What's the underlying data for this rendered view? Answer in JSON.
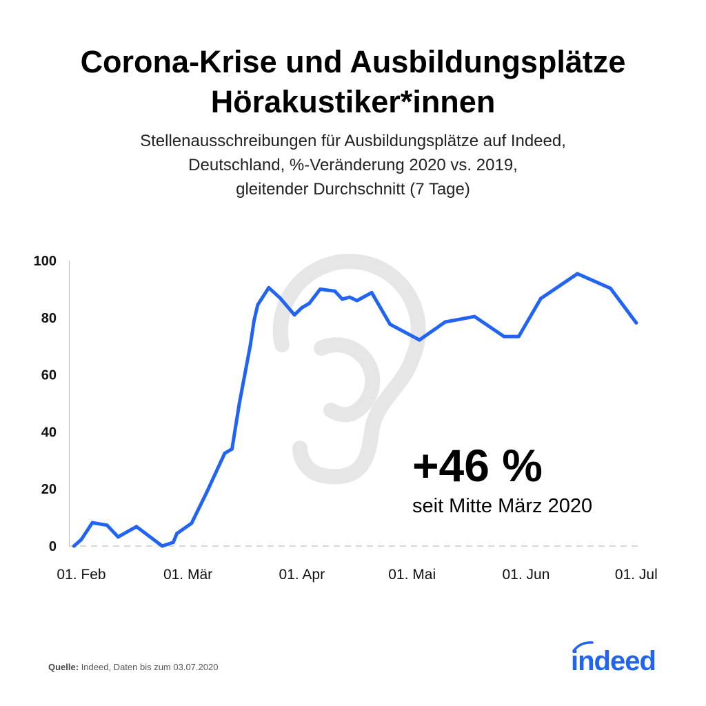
{
  "title_line1": "Corona-Krise und Ausbildungsplätze",
  "title_line2": "Hörakustiker*innen",
  "subtitle_line1": "Stellenausschreibungen für Ausbildungsplätze auf Indeed,",
  "subtitle_line2": "Deutschland, %-Veränderung 2020 vs. 2019,",
  "subtitle_line3": "gleitender Durchschnitt (7 Tage)",
  "highlight": {
    "value": "+46 %",
    "caption": "seit Mitte März 2020"
  },
  "source": {
    "label": "Quelle:",
    "text": " Indeed, Daten bis zum 03.07.2020"
  },
  "logo": "indeed",
  "colors": {
    "line": "#2164f3",
    "brand": "#2164f3",
    "watermark": "#e6e6e6"
  },
  "watermark_icon": "ear-icon",
  "chart_data": {
    "type": "line",
    "xlabel": "",
    "ylabel": "",
    "ylim": [
      0,
      100
    ],
    "yticks": [
      "0",
      "20",
      "40",
      "60",
      "80",
      "100"
    ],
    "xticks": [
      {
        "date": "2020-02-01",
        "label": "01. Feb"
      },
      {
        "date": "2020-03-01",
        "label": "01. Mär"
      },
      {
        "date": "2020-04-01",
        "label": "01. Apr"
      },
      {
        "date": "2020-05-01",
        "label": "01. Mai"
      },
      {
        "date": "2020-06-01",
        "label": "01. Jun"
      },
      {
        "date": "2020-07-01",
        "label": "01. Jul"
      }
    ],
    "zero_line": "dashed",
    "grid": false,
    "series": [
      {
        "points": [
          [
            "2020-01-30",
            0
          ],
          [
            "2020-02-01",
            2.3
          ],
          [
            "2020-02-04",
            8.2
          ],
          [
            "2020-02-08",
            7.3
          ],
          [
            "2020-02-11",
            3.2
          ],
          [
            "2020-02-16",
            6.8
          ],
          [
            "2020-02-23",
            0
          ],
          [
            "2020-02-26",
            1.3
          ],
          [
            "2020-02-27",
            4.4
          ],
          [
            "2020-03-02",
            8
          ],
          [
            "2020-03-06",
            18.5
          ],
          [
            "2020-03-11",
            32.5
          ],
          [
            "2020-03-13",
            34
          ],
          [
            "2020-03-15",
            50
          ],
          [
            "2020-03-18",
            70.5
          ],
          [
            "2020-03-19",
            79
          ],
          [
            "2020-03-20",
            84.5
          ],
          [
            "2020-03-23",
            90.5
          ],
          [
            "2020-03-26",
            87
          ],
          [
            "2020-03-30",
            81
          ],
          [
            "2020-04-01",
            83.5
          ],
          [
            "2020-04-03",
            85
          ],
          [
            "2020-04-06",
            90
          ],
          [
            "2020-04-10",
            89.3
          ],
          [
            "2020-04-12",
            86.5
          ],
          [
            "2020-04-14",
            87.2
          ],
          [
            "2020-04-16",
            86
          ],
          [
            "2020-04-20",
            88.8
          ],
          [
            "2020-04-25",
            77.7
          ],
          [
            "2020-05-03",
            72.2
          ],
          [
            "2020-05-10",
            78.5
          ],
          [
            "2020-05-18",
            80.4
          ],
          [
            "2020-05-26",
            73.4
          ],
          [
            "2020-05-30",
            73.4
          ],
          [
            "2020-06-05",
            86.7
          ],
          [
            "2020-06-15",
            95.4
          ],
          [
            "2020-06-24",
            90.3
          ],
          [
            "2020-07-01",
            78.2
          ]
        ]
      }
    ]
  }
}
